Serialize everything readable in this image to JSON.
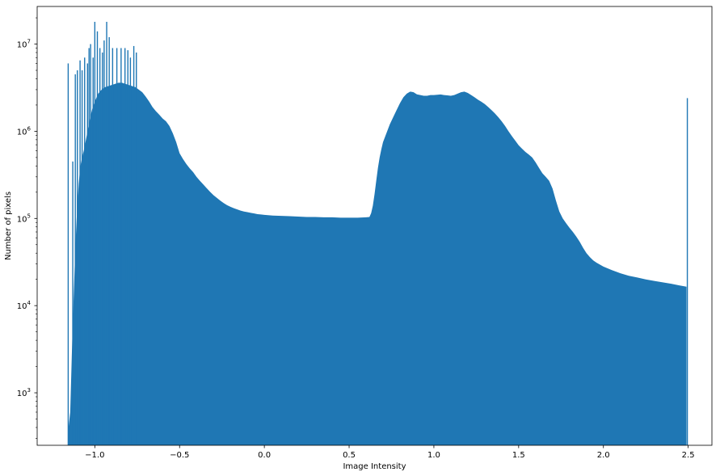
{
  "chart_data": {
    "type": "histogram",
    "title": "",
    "xlabel": "Image Intensity",
    "ylabel": "Number of pixels",
    "yscale": "log",
    "xlim": [
      -1.34,
      2.64
    ],
    "ylim": [
      250,
      27000000
    ],
    "grid": false,
    "legend": "none",
    "x_ticks": [
      {
        "value": -1.0,
        "label": "−1.0"
      },
      {
        "value": -0.5,
        "label": "−0.5"
      },
      {
        "value": 0.0,
        "label": "0.0"
      },
      {
        "value": 0.5,
        "label": "0.5"
      },
      {
        "value": 1.0,
        "label": "1.0"
      },
      {
        "value": 1.5,
        "label": "1.5"
      },
      {
        "value": 2.0,
        "label": "2.0"
      },
      {
        "value": 2.5,
        "label": "2.5"
      }
    ],
    "y_ticks": [
      {
        "value": 1000,
        "base": "10",
        "exp": "3"
      },
      {
        "value": 10000,
        "base": "10",
        "exp": "4"
      },
      {
        "value": 100000,
        "base": "10",
        "exp": "5"
      },
      {
        "value": 1000000,
        "base": "10",
        "exp": "6"
      },
      {
        "value": 10000000,
        "base": "10",
        "exp": "7"
      }
    ],
    "bar_color": "#1f77b4",
    "envelope": [
      [
        -1.155,
        400
      ],
      [
        -1.145,
        600
      ],
      [
        -1.135,
        3000
      ],
      [
        -1.125,
        12000
      ],
      [
        -1.115,
        45000
      ],
      [
        -1.105,
        120000
      ],
      [
        -1.095,
        250000
      ],
      [
        -1.085,
        400000
      ],
      [
        -1.075,
        500000
      ],
      [
        -1.065,
        600000
      ],
      [
        -1.055,
        750000
      ],
      [
        -1.045,
        950000
      ],
      [
        -1.035,
        1200000
      ],
      [
        -1.025,
        1500000
      ],
      [
        -1.015,
        1800000
      ],
      [
        -1.0,
        2200000
      ],
      [
        -0.98,
        2700000
      ],
      [
        -0.96,
        3000000
      ],
      [
        -0.94,
        3200000
      ],
      [
        -0.92,
        3300000
      ],
      [
        -0.9,
        3400000
      ],
      [
        -0.88,
        3500000
      ],
      [
        -0.86,
        3600000
      ],
      [
        -0.84,
        3600000
      ],
      [
        -0.82,
        3500000
      ],
      [
        -0.8,
        3400000
      ],
      [
        -0.78,
        3300000
      ],
      [
        -0.76,
        3200000
      ],
      [
        -0.74,
        3000000
      ],
      [
        -0.72,
        2800000
      ],
      [
        -0.7,
        2500000
      ],
      [
        -0.68,
        2200000
      ],
      [
        -0.66,
        1900000
      ],
      [
        -0.64,
        1700000
      ],
      [
        -0.62,
        1550000
      ],
      [
        -0.6,
        1400000
      ],
      [
        -0.58,
        1300000
      ],
      [
        -0.56,
        1150000
      ],
      [
        -0.54,
        950000
      ],
      [
        -0.52,
        750000
      ],
      [
        -0.5,
        560000
      ],
      [
        -0.48,
        480000
      ],
      [
        -0.46,
        420000
      ],
      [
        -0.44,
        375000
      ],
      [
        -0.42,
        340000
      ],
      [
        -0.4,
        300000
      ],
      [
        -0.38,
        270000
      ],
      [
        -0.36,
        245000
      ],
      [
        -0.34,
        222000
      ],
      [
        -0.32,
        202000
      ],
      [
        -0.3,
        185000
      ],
      [
        -0.28,
        172000
      ],
      [
        -0.26,
        160000
      ],
      [
        -0.24,
        150000
      ],
      [
        -0.22,
        142000
      ],
      [
        -0.2,
        136000
      ],
      [
        -0.18,
        131000
      ],
      [
        -0.16,
        127000
      ],
      [
        -0.14,
        123000
      ],
      [
        -0.12,
        120000
      ],
      [
        -0.1,
        118000
      ],
      [
        -0.08,
        116000
      ],
      [
        -0.06,
        114000
      ],
      [
        -0.04,
        112000
      ],
      [
        -0.02,
        111000
      ],
      [
        0.0,
        110000
      ],
      [
        0.05,
        108000
      ],
      [
        0.1,
        107000
      ],
      [
        0.15,
        106000
      ],
      [
        0.2,
        105000
      ],
      [
        0.25,
        104000
      ],
      [
        0.3,
        104000
      ],
      [
        0.35,
        103000
      ],
      [
        0.4,
        103000
      ],
      [
        0.45,
        102000
      ],
      [
        0.5,
        102000
      ],
      [
        0.55,
        102000
      ],
      [
        0.6,
        103000
      ],
      [
        0.62,
        104000
      ],
      [
        0.63,
        115000
      ],
      [
        0.64,
        140000
      ],
      [
        0.65,
        190000
      ],
      [
        0.66,
        270000
      ],
      [
        0.67,
        380000
      ],
      [
        0.68,
        500000
      ],
      [
        0.69,
        620000
      ],
      [
        0.7,
        750000
      ],
      [
        0.72,
        950000
      ],
      [
        0.74,
        1200000
      ],
      [
        0.76,
        1450000
      ],
      [
        0.78,
        1750000
      ],
      [
        0.8,
        2100000
      ],
      [
        0.82,
        2450000
      ],
      [
        0.84,
        2700000
      ],
      [
        0.86,
        2850000
      ],
      [
        0.88,
        2800000
      ],
      [
        0.9,
        2650000
      ],
      [
        0.92,
        2600000
      ],
      [
        0.94,
        2550000
      ],
      [
        0.96,
        2550000
      ],
      [
        0.98,
        2600000
      ],
      [
        1.0,
        2600000
      ],
      [
        1.02,
        2620000
      ],
      [
        1.04,
        2640000
      ],
      [
        1.06,
        2600000
      ],
      [
        1.08,
        2580000
      ],
      [
        1.1,
        2550000
      ],
      [
        1.12,
        2600000
      ],
      [
        1.14,
        2700000
      ],
      [
        1.16,
        2800000
      ],
      [
        1.18,
        2850000
      ],
      [
        1.2,
        2750000
      ],
      [
        1.22,
        2600000
      ],
      [
        1.24,
        2450000
      ],
      [
        1.26,
        2300000
      ],
      [
        1.28,
        2180000
      ],
      [
        1.3,
        2050000
      ],
      [
        1.32,
        1900000
      ],
      [
        1.34,
        1750000
      ],
      [
        1.36,
        1600000
      ],
      [
        1.38,
        1450000
      ],
      [
        1.4,
        1300000
      ],
      [
        1.42,
        1150000
      ],
      [
        1.44,
        1000000
      ],
      [
        1.46,
        880000
      ],
      [
        1.48,
        780000
      ],
      [
        1.5,
        690000
      ],
      [
        1.52,
        630000
      ],
      [
        1.54,
        580000
      ],
      [
        1.56,
        540000
      ],
      [
        1.58,
        500000
      ],
      [
        1.6,
        440000
      ],
      [
        1.62,
        380000
      ],
      [
        1.64,
        330000
      ],
      [
        1.66,
        300000
      ],
      [
        1.68,
        270000
      ],
      [
        1.7,
        220000
      ],
      [
        1.72,
        160000
      ],
      [
        1.74,
        120000
      ],
      [
        1.76,
        100000
      ],
      [
        1.78,
        88000
      ],
      [
        1.8,
        78000
      ],
      [
        1.82,
        70000
      ],
      [
        1.84,
        62000
      ],
      [
        1.86,
        54000
      ],
      [
        1.88,
        46000
      ],
      [
        1.9,
        40000
      ],
      [
        1.92,
        36000
      ],
      [
        1.94,
        33000
      ],
      [
        1.96,
        31000
      ],
      [
        1.98,
        29500
      ],
      [
        2.0,
        28000
      ],
      [
        2.05,
        25500
      ],
      [
        2.1,
        23500
      ],
      [
        2.15,
        22000
      ],
      [
        2.2,
        21000
      ],
      [
        2.25,
        20000
      ],
      [
        2.3,
        19200
      ],
      [
        2.35,
        18500
      ],
      [
        2.4,
        17800
      ],
      [
        2.45,
        17000
      ],
      [
        2.49,
        16500
      ]
    ],
    "spikes": [
      [
        -1.157,
        6000000
      ],
      [
        -1.13,
        450000
      ],
      [
        -1.115,
        4500000
      ],
      [
        -1.103,
        5000000
      ],
      [
        -1.087,
        6500000
      ],
      [
        -1.075,
        5000000
      ],
      [
        -1.06,
        7000000
      ],
      [
        -1.043,
        6000000
      ],
      [
        -1.034,
        9000000
      ],
      [
        -1.025,
        10000000
      ],
      [
        -1.01,
        7000000
      ],
      [
        -1.0,
        18000000
      ],
      [
        -0.985,
        14000000
      ],
      [
        -0.97,
        9000000
      ],
      [
        -0.955,
        8000000
      ],
      [
        -0.945,
        11000000
      ],
      [
        -0.93,
        18000000
      ],
      [
        -0.915,
        12000000
      ],
      [
        -0.895,
        9000000
      ],
      [
        -0.87,
        9000000
      ],
      [
        -0.845,
        9000000
      ],
      [
        -0.822,
        9000000
      ],
      [
        -0.805,
        8500000
      ],
      [
        -0.79,
        7000000
      ],
      [
        -0.77,
        9500000
      ],
      [
        -0.755,
        8000000
      ],
      [
        2.495,
        2400000
      ]
    ]
  }
}
